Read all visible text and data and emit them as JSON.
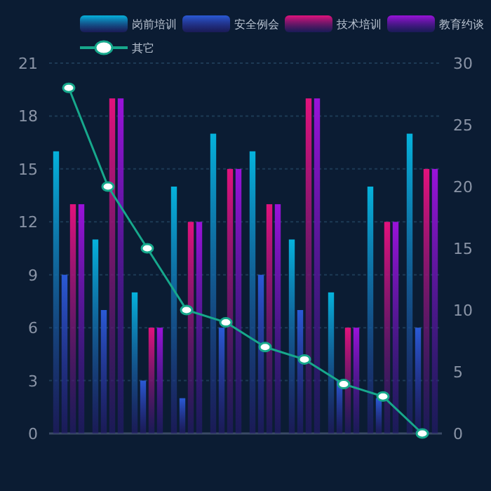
{
  "chart_data": {
    "type": "bar",
    "categories": [
      null,
      null,
      null,
      null,
      null,
      null,
      null,
      null,
      null,
      null
    ],
    "series": [
      {
        "name": "岗前培训",
        "color": "#05b2dc",
        "values": [
          16,
          11,
          8,
          14,
          17,
          16,
          11,
          8,
          14,
          17
        ]
      },
      {
        "name": "安全例会",
        "color": "#2a5ad6",
        "values": [
          9,
          7,
          3,
          2,
          6,
          9,
          7,
          3,
          2,
          6
        ]
      },
      {
        "name": "技术培训",
        "color": "#e2127c",
        "values": [
          13,
          19,
          6,
          12,
          15,
          13,
          19,
          6,
          12,
          15
        ]
      },
      {
        "name": "教育约谈",
        "color": "#9a12da",
        "values": [
          13,
          19,
          6,
          12,
          15,
          13,
          19,
          6,
          12,
          15
        ]
      },
      {
        "name": "其它",
        "type": "line",
        "axis": "y2",
        "color": "#17a88c",
        "marker": "circle",
        "values": [
          28,
          20,
          15,
          10,
          9,
          7,
          6,
          4,
          3,
          0
        ]
      }
    ],
    "ylim": [
      0,
      21
    ],
    "yticks": [
      0,
      3,
      6,
      9,
      12,
      15,
      18,
      21
    ],
    "y2lim": [
      0,
      30
    ],
    "y2ticks": [
      0,
      5,
      10,
      15,
      20,
      25,
      30
    ],
    "grid": "y",
    "legend": "top",
    "tick_labels": "y"
  }
}
